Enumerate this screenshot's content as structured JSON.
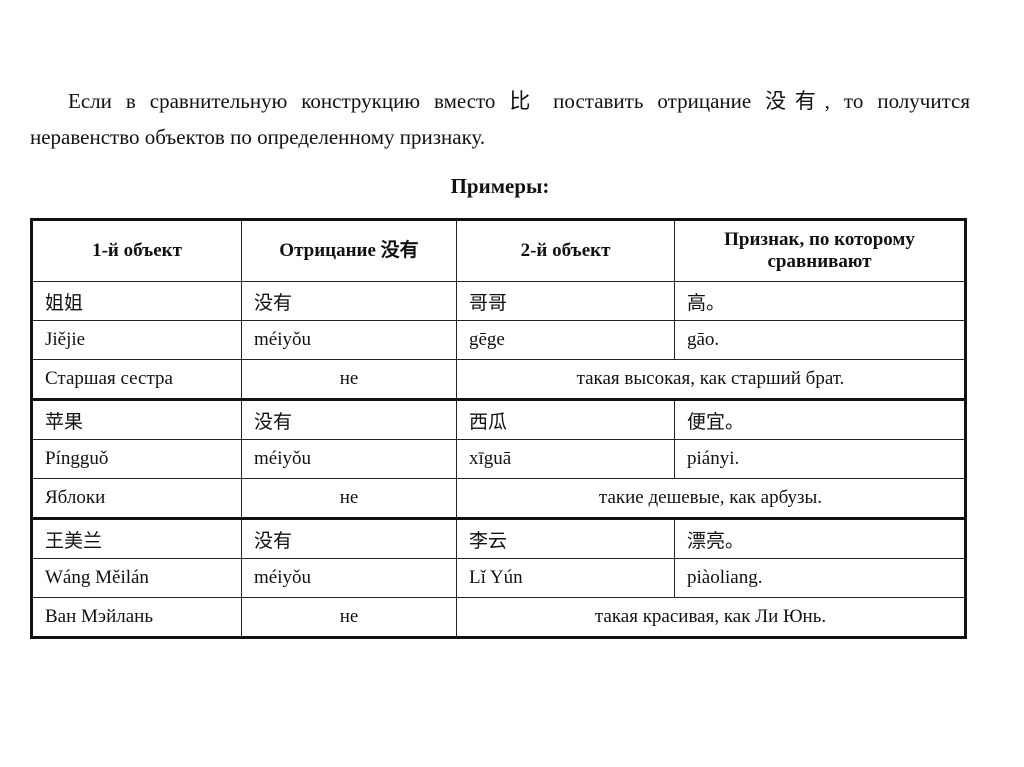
{
  "paragraph": "Если в сравнительную конструкцию вместо 比 поставить отрицание 没有, то получится неравенство объектов по определенному признаку.",
  "heading": "Примеры:",
  "table": {
    "headers": [
      "1-й объект",
      "Отрицание 没有",
      "2-й объект",
      "Признак, по которому сравнивают"
    ],
    "groups": [
      {
        "hanzi": [
          "姐姐",
          "没有",
          "哥哥",
          "高。"
        ],
        "pinyin": [
          "Jiějie",
          "méiyǒu",
          "gēge",
          "gāo."
        ],
        "translation": [
          "Старшая сестра",
          "не",
          "такая высокая, как старший брат."
        ]
      },
      {
        "hanzi": [
          "苹果",
          "没有",
          "西瓜",
          "便宜。"
        ],
        "pinyin": [
          "Píngguǒ",
          "méiyǒu",
          "xīguā",
          "piányi."
        ],
        "translation": [
          "Яблоки",
          "не",
          "такие дешевые, как арбузы."
        ]
      },
      {
        "hanzi": [
          "王美兰",
          "没有",
          "李云",
          "漂亮。"
        ],
        "pinyin": [
          "Wáng Měilán",
          "méiyǒu",
          "Lǐ Yún",
          "piàoliang."
        ],
        "translation": [
          "Ван Мэйлань",
          "не",
          "такая красивая, как Ли Юнь."
        ]
      }
    ]
  }
}
